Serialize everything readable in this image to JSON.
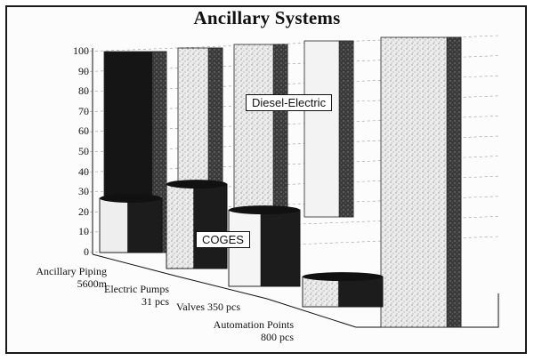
{
  "chart_data": {
    "type": "bar",
    "title": "Ancillary Systems",
    "xlabel": "",
    "ylabel": "",
    "ylim": [
      0,
      100
    ],
    "yticks": [
      "0",
      "10",
      "20",
      "30",
      "40",
      "50",
      "60",
      "70",
      "80",
      "90",
      "100"
    ],
    "categories": [
      {
        "line1": "Ancillary Piping",
        "line2": "5600m"
      },
      {
        "line1": "Electric Pumps",
        "line2": "31 pcs"
      },
      {
        "line1": "Valves 350 pcs",
        "line2": ""
      },
      {
        "line1": "Automation Points",
        "line2": "800 pcs"
      }
    ],
    "series": [
      {
        "name": "COGES",
        "values": [
          27,
          42,
          38,
          15
        ]
      },
      {
        "name": "Diesel-Electric",
        "values": [
          100,
          100,
          100,
          100
        ]
      }
    ],
    "annotations": [
      "Diesel-Electric",
      "COGES"
    ],
    "grid": true,
    "colors": {
      "dark": "#151515",
      "light": "#e9e9e9",
      "speckle": "#8a8a8a",
      "frame": "#1a1a1a"
    }
  }
}
